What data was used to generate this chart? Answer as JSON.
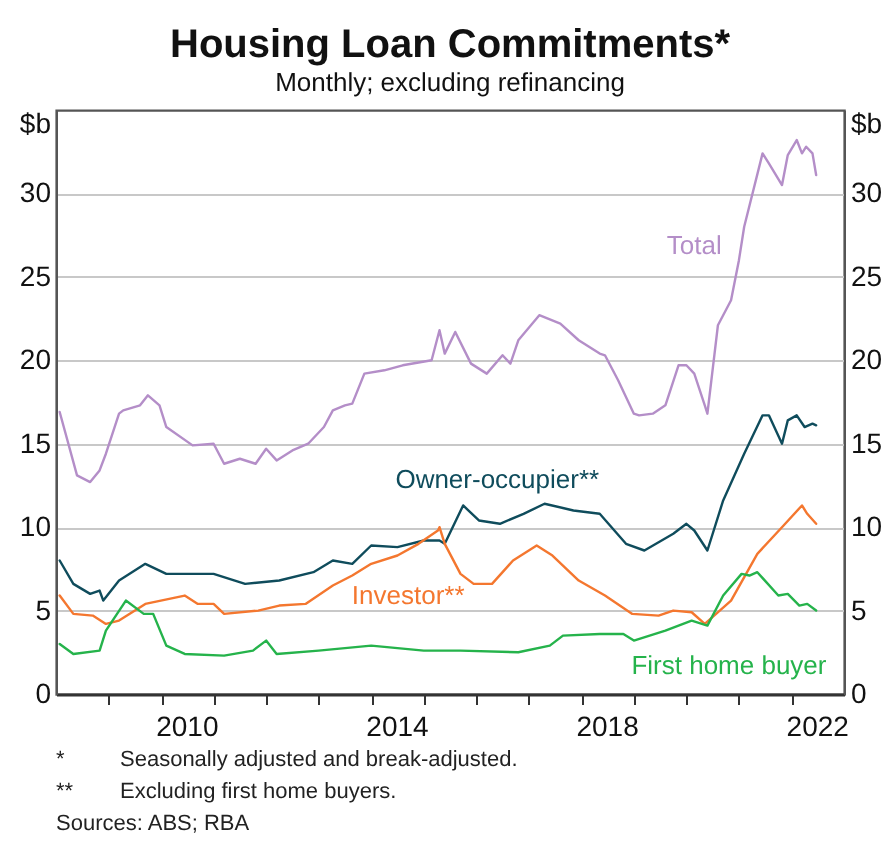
{
  "chart_data": {
    "type": "line",
    "title": "Housing Loan Commitments*",
    "subtitle": "Monthly; excluding refinancing",
    "ylabel": "$b",
    "y2label": "$b",
    "annotations": [
      "*\tSeasonally adjusted and break-adjusted.",
      "**\tExcluding first home buyers.",
      "Sources: ABS; RBA"
    ],
    "xlim": [
      2008,
      2023
    ],
    "xticks": [
      {
        "value": 2009,
        "label": null
      },
      {
        "value": 2010,
        "label": null
      },
      {
        "value": 2010.5,
        "label": "2010"
      },
      {
        "value": 2011,
        "label": null
      },
      {
        "value": 2012,
        "label": null
      },
      {
        "value": 2013,
        "label": null
      },
      {
        "value": 2014,
        "label": null
      },
      {
        "value": 2014.5,
        "label": "2014"
      },
      {
        "value": 2015,
        "label": null
      },
      {
        "value": 2016,
        "label": null
      },
      {
        "value": 2017,
        "label": null
      },
      {
        "value": 2018,
        "label": null
      },
      {
        "value": 2018.5,
        "label": "2018"
      },
      {
        "value": 2019,
        "label": null
      },
      {
        "value": 2020,
        "label": null
      },
      {
        "value": 2021,
        "label": null
      },
      {
        "value": 2022,
        "label": null
      },
      {
        "value": 2022.5,
        "label": "2022"
      }
    ],
    "ylim": [
      0,
      35
    ],
    "yticks": [
      0,
      5,
      10,
      15,
      20,
      25,
      30
    ],
    "y2lim": [
      0,
      35
    ],
    "y2ticks": [
      0,
      5,
      10,
      15,
      20,
      25,
      30
    ],
    "grid": "y",
    "marker": "none",
    "line_style": "solid",
    "series": [
      {
        "name": "Total",
        "color": "#b48ec8",
        "x": [
          2008.07,
          2008.4,
          2008.65,
          2008.83,
          2008.95,
          2009.2,
          2009.28,
          2009.6,
          2009.75,
          2009.97,
          2010.1,
          2010.6,
          2011.0,
          2011.2,
          2011.5,
          2011.8,
          2012.0,
          2012.2,
          2012.5,
          2012.8,
          2013.1,
          2013.27,
          2013.5,
          2013.64,
          2013.87,
          2014.25,
          2014.6,
          2015.15,
          2015.3,
          2015.4,
          2015.6,
          2015.9,
          2016.2,
          2016.5,
          2016.65,
          2016.8,
          2017.2,
          2017.6,
          2017.95,
          2018.35,
          2018.45,
          2018.7,
          2019.0,
          2019.1,
          2019.36,
          2019.6,
          2019.85,
          2020.0,
          2020.15,
          2020.35,
          2020.4,
          2020.6,
          2020.85,
          2021.0,
          2021.1,
          2021.45,
          2021.57,
          2021.82,
          2021.93,
          2022.1,
          2022.2,
          2022.28,
          2022.4,
          2022.47
        ],
        "values": [
          16.9,
          13.1,
          12.7,
          13.4,
          14.4,
          16.8,
          17.0,
          17.3,
          17.9,
          17.3,
          16.0,
          14.9,
          15.0,
          13.8,
          14.1,
          13.8,
          14.7,
          14.0,
          14.6,
          15.0,
          16.0,
          17.0,
          17.3,
          17.4,
          19.2,
          19.4,
          19.7,
          20.0,
          21.8,
          20.4,
          21.7,
          19.8,
          19.2,
          20.3,
          19.8,
          21.2,
          22.7,
          22.2,
          21.2,
          20.4,
          20.3,
          18.8,
          16.8,
          16.7,
          16.8,
          17.3,
          19.7,
          19.7,
          19.2,
          17.3,
          16.8,
          22.1,
          23.6,
          26.0,
          28.0,
          32.4,
          31.8,
          30.5,
          32.3,
          33.2,
          32.4,
          32.8,
          32.4,
          31.1
        ]
      },
      {
        "name": "Owner-occupier**",
        "color": "#0f4c5c",
        "x": [
          2008.07,
          2008.33,
          2008.65,
          2008.83,
          2008.9,
          2009.2,
          2009.7,
          2010.1,
          2011.0,
          2011.6,
          2012.25,
          2012.9,
          2013.27,
          2013.64,
          2014.0,
          2014.5,
          2015.0,
          2015.3,
          2015.4,
          2015.75,
          2016.05,
          2016.45,
          2016.9,
          2017.3,
          2017.85,
          2018.35,
          2018.85,
          2019.2,
          2019.75,
          2020.0,
          2020.15,
          2020.4,
          2020.7,
          2021.1,
          2021.45,
          2021.57,
          2021.82,
          2021.93,
          2022.1,
          2022.25,
          2022.4,
          2022.47
        ],
        "values": [
          8.0,
          6.6,
          6.0,
          6.2,
          5.6,
          6.8,
          7.8,
          7.2,
          7.2,
          6.6,
          6.8,
          7.3,
          8.0,
          7.8,
          8.9,
          8.8,
          9.2,
          9.2,
          9.0,
          11.3,
          10.4,
          10.2,
          10.8,
          11.4,
          11.0,
          10.8,
          9.0,
          8.6,
          9.6,
          10.2,
          9.8,
          8.6,
          11.6,
          14.4,
          16.7,
          16.7,
          15.0,
          16.4,
          16.7,
          16.0,
          16.2,
          16.1
        ]
      },
      {
        "name": "Investor**",
        "color": "#f4772f",
        "x": [
          2008.07,
          2008.33,
          2008.7,
          2008.95,
          2009.2,
          2009.7,
          2010.45,
          2010.7,
          2011.0,
          2011.2,
          2011.85,
          2012.25,
          2012.75,
          2013.27,
          2013.64,
          2014.0,
          2014.5,
          2014.9,
          2015.27,
          2015.3,
          2015.4,
          2015.7,
          2015.95,
          2016.3,
          2016.7,
          2017.15,
          2017.45,
          2017.95,
          2018.45,
          2018.97,
          2019.47,
          2019.75,
          2020.1,
          2020.35,
          2020.85,
          2021.35,
          2021.85,
          2022.2,
          2022.3,
          2022.47
        ],
        "values": [
          5.9,
          4.8,
          4.7,
          4.2,
          4.4,
          5.4,
          5.9,
          5.4,
          5.4,
          4.8,
          5.0,
          5.3,
          5.4,
          6.5,
          7.1,
          7.8,
          8.3,
          9.0,
          9.8,
          10.0,
          9.0,
          7.2,
          6.6,
          6.6,
          8.0,
          8.9,
          8.3,
          6.8,
          5.9,
          4.8,
          4.7,
          5.0,
          4.9,
          4.2,
          5.6,
          8.4,
          10.1,
          11.3,
          10.8,
          10.2
        ]
      },
      {
        "name": "First home buyer",
        "color": "#25b34b",
        "x": [
          2008.07,
          2008.33,
          2008.83,
          2008.95,
          2009.33,
          2009.67,
          2009.85,
          2010.1,
          2010.45,
          2011.2,
          2011.75,
          2012.0,
          2012.2,
          2013.0,
          2014.0,
          2015.0,
          2015.7,
          2016.8,
          2017.4,
          2017.65,
          2018.35,
          2018.8,
          2019.0,
          2019.6,
          2020.1,
          2020.4,
          2020.7,
          2021.05,
          2021.2,
          2021.35,
          2021.75,
          2021.93,
          2022.15,
          2022.3,
          2022.47
        ],
        "values": [
          3.0,
          2.4,
          2.6,
          3.8,
          5.6,
          4.8,
          4.8,
          2.9,
          2.4,
          2.3,
          2.6,
          3.2,
          2.4,
          2.6,
          2.9,
          2.6,
          2.6,
          2.5,
          2.9,
          3.5,
          3.6,
          3.6,
          3.2,
          3.8,
          4.4,
          4.1,
          5.9,
          7.2,
          7.1,
          7.3,
          5.9,
          6.0,
          5.3,
          5.4,
          5.0
        ]
      }
    ]
  }
}
